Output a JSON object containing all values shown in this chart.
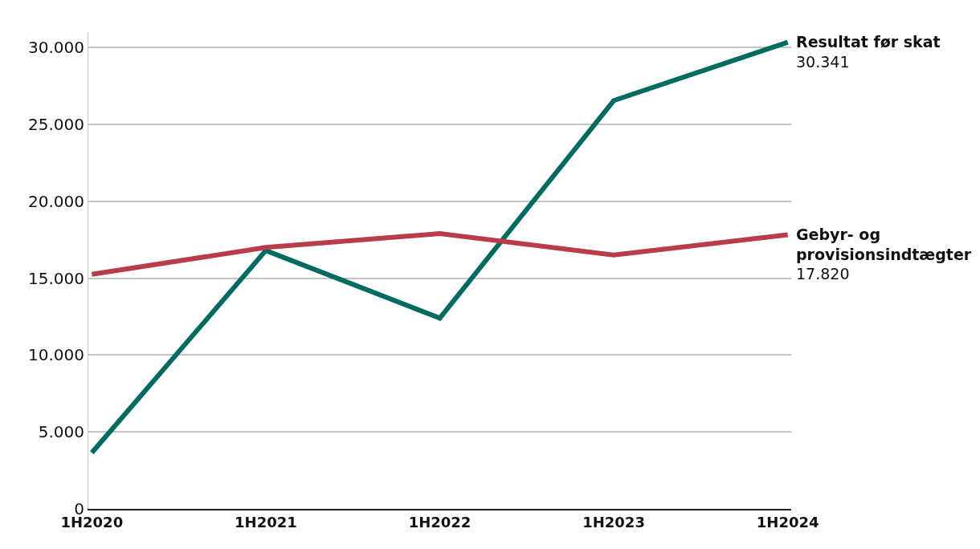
{
  "chart_data": {
    "type": "line",
    "categories": [
      "1H2020",
      "1H2021",
      "1H2022",
      "1H2023",
      "1H2024"
    ],
    "series": [
      {
        "name": "Resultat før skat",
        "color": "#006b5f",
        "values": [
          3650,
          16800,
          12400,
          26550,
          30341
        ],
        "value_labels": [
          null,
          null,
          null,
          null,
          "30.341"
        ]
      },
      {
        "name": "Gebyr- og provisionsindtægter",
        "color": "#b83c4a",
        "values": [
          15250,
          17000,
          17900,
          16500,
          17820
        ],
        "value_labels": [
          null,
          null,
          null,
          null,
          "17.820"
        ]
      }
    ],
    "ylim": [
      0,
      31000
    ],
    "yticks": [
      0,
      {
        "value": 5000,
        "label": "5.000"
      },
      {
        "value": 10000,
        "label": "10.000"
      },
      {
        "value": 15000,
        "label": "15.000"
      },
      {
        "value": 20000,
        "label": "20.000"
      },
      {
        "value": 25000,
        "label": "25.000"
      },
      {
        "value": 30000,
        "label": "30.000"
      }
    ],
    "grid": "y",
    "legend": false,
    "marker": "none",
    "line_style": "solid"
  }
}
